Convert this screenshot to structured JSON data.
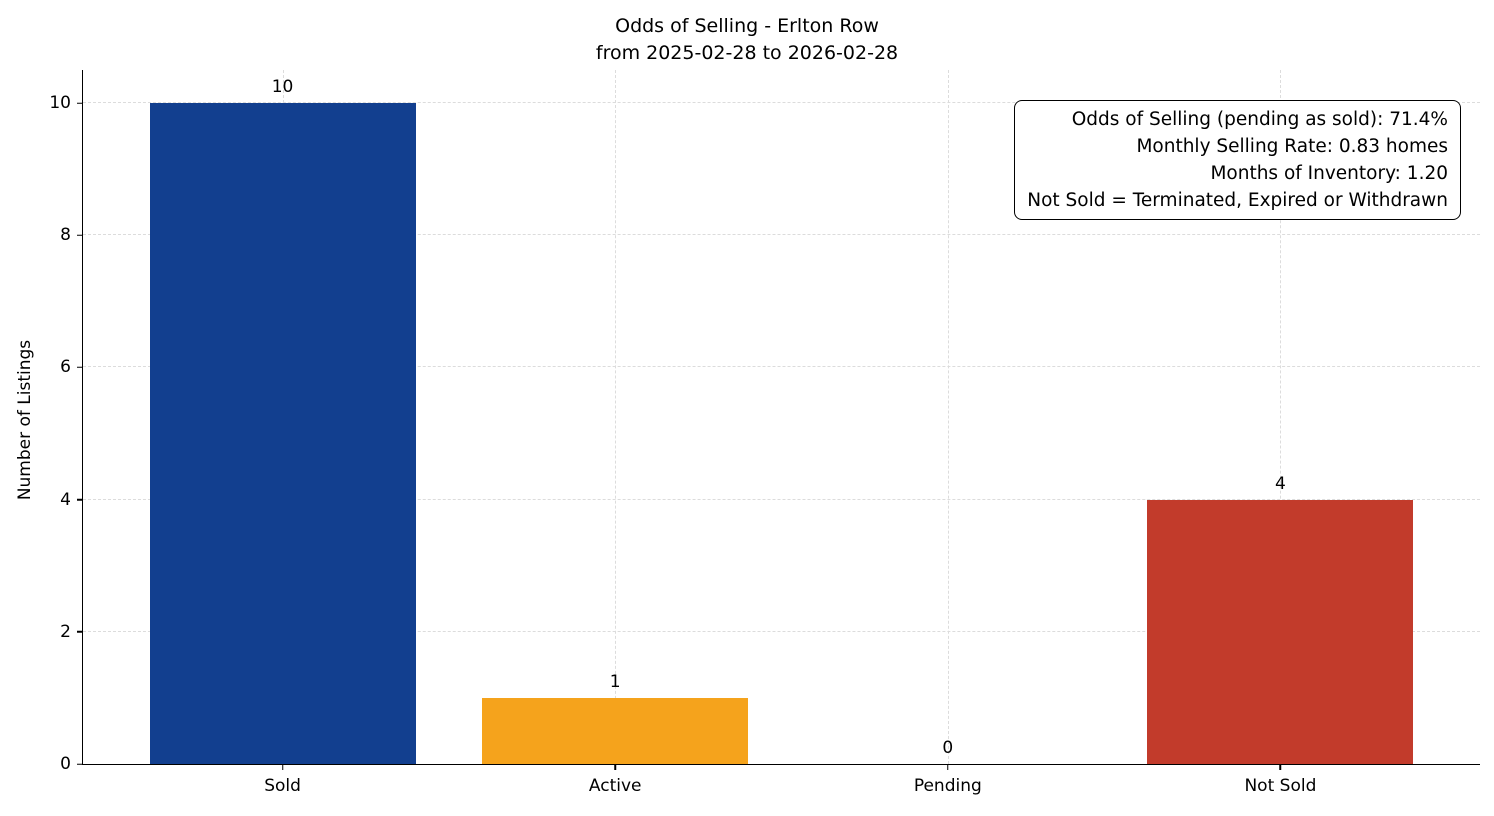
{
  "chart_data": {
    "type": "bar",
    "title": "Odds of Selling - Erlton Row",
    "subtitle": "from 2025-02-28 to 2026-02-28",
    "ylabel": "Number of Listings",
    "xlabel": "",
    "categories": [
      "Sold",
      "Active",
      "Pending",
      "Not Sold"
    ],
    "values": [
      10,
      1,
      0,
      4
    ],
    "value_labels": [
      "10",
      "1",
      "0",
      "4"
    ],
    "bar_colors": [
      "#123f8f",
      "#f5a31c",
      "#9a9a9a",
      "#c23b2b"
    ],
    "ylim": [
      0,
      10.5
    ],
    "yticks": [
      0,
      2,
      4,
      6,
      8,
      10
    ],
    "grid": "dashed, both axes",
    "legend": "none",
    "annotation": {
      "lines": [
        "Odds of Selling (pending as sold): 71.4%",
        "Monthly Selling Rate: 0.83 homes",
        "Months of Inventory: 1.20",
        "Not Sold = Terminated, Expired or Withdrawn"
      ]
    }
  }
}
